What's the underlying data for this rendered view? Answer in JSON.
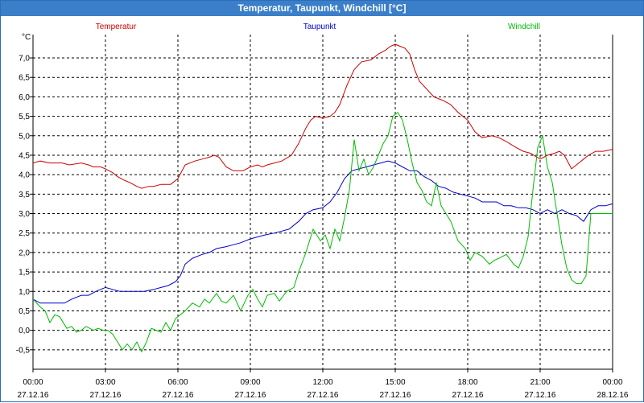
{
  "window": {
    "title": "Temperatur, Taupunkt, Windchill [°C]"
  },
  "chart_data": {
    "type": "line",
    "title": "Temperatur, Taupunkt, Windchill [°C]",
    "ylabel": "°C",
    "xlabel": "",
    "ylim": [
      -1.0,
      7.6
    ],
    "xlim_hours": [
      0,
      24
    ],
    "grid": true,
    "y_ticks": [
      "-0,5",
      "0,0",
      "0,5",
      "1,0",
      "1,5",
      "2,0",
      "2,5",
      "3,0",
      "3,5",
      "4,0",
      "4,5",
      "5,0",
      "5,5",
      "6,0",
      "6,5",
      "7,0"
    ],
    "x_ticks": [
      {
        "time": "00:00",
        "date": "27.12.16"
      },
      {
        "time": "03:00",
        "date": "27.12.16"
      },
      {
        "time": "06:00",
        "date": "27.12.16"
      },
      {
        "time": "09:00",
        "date": "27.12.16"
      },
      {
        "time": "12:00",
        "date": "27.12.16"
      },
      {
        "time": "15:00",
        "date": "27.12.16"
      },
      {
        "time": "18:00",
        "date": "27.12.16"
      },
      {
        "time": "21:00",
        "date": "27.12.16"
      },
      {
        "time": "00:00",
        "date": "28.12.16"
      }
    ],
    "series": [
      {
        "name": "Temperatur",
        "color": "#cc0000",
        "x": [
          0,
          0.3,
          0.7,
          1.2,
          1.5,
          2.0,
          2.3,
          2.5,
          2.8,
          3.0,
          3.3,
          3.5,
          3.8,
          4.0,
          4.3,
          4.5,
          4.8,
          5.0,
          5.3,
          5.5,
          5.7,
          6.0,
          6.3,
          6.7,
          7.0,
          7.3,
          7.5,
          7.7,
          8.0,
          8.3,
          8.7,
          9.0,
          9.3,
          9.5,
          9.7,
          10.0,
          10.3,
          10.7,
          11.0,
          11.3,
          11.5,
          11.7,
          12.0,
          12.3,
          12.5,
          12.7,
          13.0,
          13.3,
          13.6,
          14.0,
          14.3,
          14.6,
          14.8,
          15.0,
          15.2,
          15.4,
          15.6,
          15.8,
          16.0,
          16.3,
          16.6,
          17.0,
          17.3,
          17.6,
          18.0,
          18.3,
          18.6,
          19.0,
          19.3,
          19.6,
          20.0,
          20.3,
          20.6,
          21.0,
          21.3,
          21.6,
          21.8,
          22.0,
          22.3,
          22.6,
          22.8,
          23.0,
          23.3,
          23.6,
          24.0
        ],
        "values": [
          4.3,
          4.35,
          4.3,
          4.3,
          4.25,
          4.3,
          4.25,
          4.2,
          4.2,
          4.15,
          4.05,
          3.95,
          3.85,
          3.8,
          3.7,
          3.65,
          3.7,
          3.7,
          3.75,
          3.75,
          3.75,
          3.9,
          4.25,
          4.35,
          4.4,
          4.45,
          4.5,
          4.45,
          4.2,
          4.1,
          4.1,
          4.2,
          4.25,
          4.2,
          4.25,
          4.3,
          4.35,
          4.5,
          4.8,
          5.2,
          5.4,
          5.5,
          5.45,
          5.5,
          5.6,
          5.8,
          6.3,
          6.7,
          6.9,
          6.95,
          7.1,
          7.2,
          7.3,
          7.35,
          7.3,
          7.25,
          7.1,
          6.7,
          6.4,
          6.2,
          6.0,
          5.9,
          5.8,
          5.6,
          5.4,
          5.1,
          4.95,
          5.0,
          4.95,
          4.85,
          4.7,
          4.6,
          4.55,
          4.4,
          4.5,
          4.55,
          4.6,
          4.5,
          4.15,
          4.3,
          4.4,
          4.5,
          4.6,
          4.6,
          4.65
        ]
      },
      {
        "name": "Taupunkt",
        "color": "#0000cc",
        "x": [
          0,
          0.3,
          0.7,
          1.0,
          1.3,
          1.6,
          2.0,
          2.3,
          2.6,
          2.8,
          3.0,
          3.3,
          3.6,
          4.0,
          4.3,
          4.6,
          5.0,
          5.3,
          5.6,
          5.9,
          6.1,
          6.3,
          6.6,
          7.0,
          7.3,
          7.6,
          8.0,
          8.3,
          8.6,
          9.0,
          9.3,
          9.6,
          10.0,
          10.3,
          10.6,
          11.0,
          11.3,
          11.6,
          12.0,
          12.3,
          12.6,
          12.9,
          13.2,
          13.5,
          13.8,
          14.1,
          14.4,
          14.7,
          15.0,
          15.3,
          15.6,
          15.9,
          16.2,
          16.5,
          16.8,
          17.1,
          17.4,
          17.7,
          18.0,
          18.3,
          18.6,
          18.9,
          19.2,
          19.5,
          19.8,
          20.1,
          20.4,
          20.7,
          21.0,
          21.3,
          21.6,
          21.9,
          22.2,
          22.5,
          22.8,
          23.1,
          23.4,
          23.7,
          24.0
        ],
        "values": [
          0.8,
          0.7,
          0.7,
          0.7,
          0.7,
          0.8,
          0.9,
          0.9,
          1.0,
          1.05,
          1.1,
          1.05,
          1.0,
          1.0,
          1.0,
          1.0,
          1.05,
          1.1,
          1.15,
          1.25,
          1.4,
          1.7,
          1.85,
          1.95,
          2.0,
          2.1,
          2.15,
          2.2,
          2.25,
          2.35,
          2.4,
          2.45,
          2.5,
          2.55,
          2.6,
          2.8,
          3.0,
          3.1,
          3.15,
          3.3,
          3.55,
          3.9,
          4.1,
          4.15,
          4.2,
          4.25,
          4.3,
          4.35,
          4.3,
          4.2,
          4.1,
          4.1,
          3.95,
          3.85,
          3.7,
          3.65,
          3.55,
          3.5,
          3.45,
          3.4,
          3.3,
          3.3,
          3.3,
          3.2,
          3.2,
          3.15,
          3.15,
          3.1,
          3.0,
          3.1,
          3.0,
          3.1,
          3.0,
          2.95,
          2.8,
          3.1,
          3.2,
          3.2,
          3.25
        ]
      },
      {
        "name": "Windchill",
        "color": "#00bb00",
        "x": [
          0,
          0.3,
          0.5,
          0.7,
          0.9,
          1.1,
          1.4,
          1.6,
          1.8,
          2.0,
          2.2,
          2.5,
          2.7,
          2.9,
          3.1,
          3.3,
          3.5,
          3.7,
          3.9,
          4.1,
          4.3,
          4.5,
          4.7,
          4.9,
          5.1,
          5.3,
          5.5,
          5.7,
          5.9,
          6.1,
          6.3,
          6.6,
          6.9,
          7.1,
          7.3,
          7.6,
          7.8,
          8.0,
          8.3,
          8.6,
          8.9,
          9.1,
          9.3,
          9.5,
          9.7,
          10.0,
          10.2,
          10.5,
          10.8,
          11.0,
          11.3,
          11.6,
          11.9,
          12.1,
          12.3,
          12.5,
          12.7,
          12.9,
          13.1,
          13.3,
          13.5,
          13.7,
          13.9,
          14.1,
          14.3,
          14.5,
          14.7,
          14.9,
          15.1,
          15.3,
          15.5,
          15.7,
          15.9,
          16.1,
          16.3,
          16.5,
          16.7,
          16.9,
          17.1,
          17.3,
          17.6,
          17.9,
          18.1,
          18.3,
          18.6,
          18.9,
          19.1,
          19.3,
          19.6,
          19.9,
          20.1,
          20.3,
          20.5,
          20.7,
          20.9,
          21.1,
          21.3,
          21.5,
          21.7,
          21.9,
          22.1,
          22.3,
          22.5,
          22.7,
          22.9,
          23.1,
          23.3,
          23.5,
          23.7,
          23.9,
          24.0
        ],
        "values": [
          0.8,
          0.6,
          0.5,
          0.2,
          0.4,
          0.35,
          0.05,
          0.1,
          -0.05,
          0.0,
          0.1,
          0.0,
          0.05,
          0.0,
          0.0,
          -0.1,
          -0.3,
          -0.5,
          -0.35,
          -0.5,
          -0.3,
          -0.55,
          -0.3,
          0.05,
          0.0,
          -0.05,
          0.2,
          0.0,
          0.3,
          0.4,
          0.5,
          0.7,
          0.6,
          0.8,
          0.7,
          0.95,
          0.75,
          0.7,
          0.9,
          0.5,
          0.9,
          1.05,
          0.8,
          0.6,
          0.9,
          0.95,
          0.75,
          1.0,
          1.1,
          1.5,
          2.0,
          2.6,
          2.3,
          2.45,
          2.1,
          2.6,
          2.3,
          2.9,
          3.6,
          4.9,
          4.1,
          4.4,
          4.0,
          4.2,
          4.5,
          4.8,
          5.0,
          5.5,
          5.6,
          5.4,
          4.9,
          4.3,
          3.8,
          3.6,
          3.3,
          3.2,
          3.8,
          3.2,
          3.0,
          2.8,
          2.3,
          2.1,
          1.8,
          2.0,
          1.9,
          1.7,
          1.8,
          1.85,
          1.95,
          1.7,
          1.6,
          1.9,
          2.4,
          3.6,
          4.7,
          5.0,
          4.2,
          3.8,
          3.0,
          2.2,
          1.6,
          1.3,
          1.2,
          1.2,
          1.4,
          3.0,
          3.0,
          3.0,
          3.0,
          3.0,
          3.0
        ]
      }
    ]
  }
}
